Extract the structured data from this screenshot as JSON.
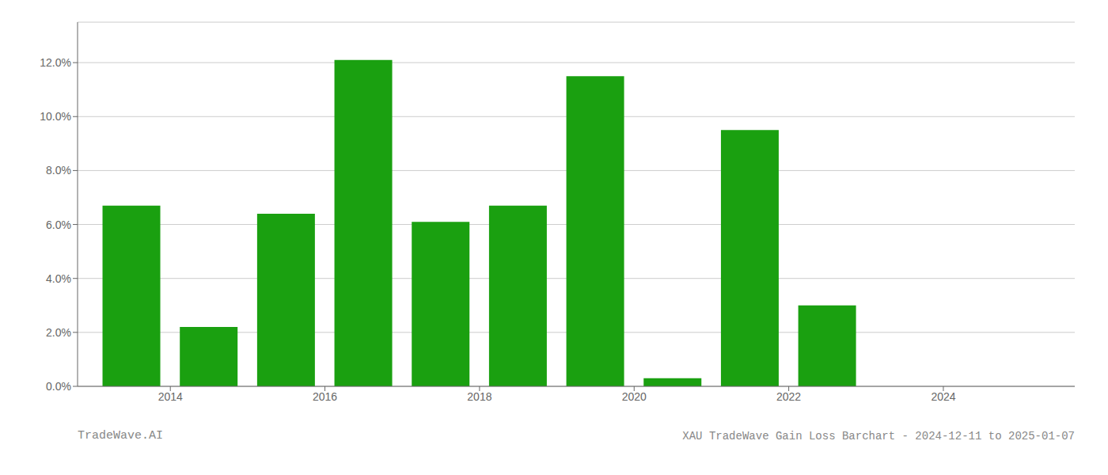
{
  "chart_data": {
    "type": "bar",
    "title": "XAU TradeWave Gain Loss Barchart - 2024-12-11 to 2025-01-07",
    "annotations": [
      "TradeWave.AI"
    ],
    "x": [
      2013,
      2014,
      2015,
      2016,
      2017,
      2018,
      2019,
      2020,
      2021,
      2022
    ],
    "values": [
      0.067,
      0.022,
      0.064,
      0.121,
      0.061,
      0.067,
      0.115,
      0.003,
      0.095,
      0.03
    ],
    "color": "#1aa010",
    "xlim": [
      2012.3,
      2025.2
    ],
    "ylim": [
      0,
      0.135
    ],
    "xticks": [
      {
        "value": 2013.5,
        "label": "2014"
      },
      {
        "value": 2015.5,
        "label": "2016"
      },
      {
        "value": 2017.5,
        "label": "2018"
      },
      {
        "value": 2019.5,
        "label": "2020"
      },
      {
        "value": 2021.5,
        "label": "2022"
      },
      {
        "value": 2023.5,
        "label": "2024"
      }
    ],
    "yticks": [
      {
        "value": 0.0,
        "label": "0.0%"
      },
      {
        "value": 0.02,
        "label": "2.0%"
      },
      {
        "value": 0.04,
        "label": "4.0%"
      },
      {
        "value": 0.06,
        "label": "6.0%"
      },
      {
        "value": 0.08,
        "label": "8.0%"
      },
      {
        "value": 0.1,
        "label": "10.0%"
      },
      {
        "value": 0.12,
        "label": "12.0%"
      }
    ],
    "grid": true
  }
}
